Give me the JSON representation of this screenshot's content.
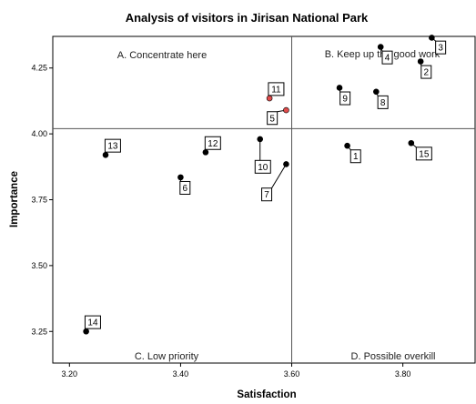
{
  "chart_data": {
    "type": "scatter",
    "title": "Analysis of visitors in Jirisan National Park",
    "xlabel": "Satisfaction",
    "ylabel": "Importance",
    "xlim": [
      3.17,
      3.93
    ],
    "ylim": [
      3.13,
      4.37
    ],
    "xticks": [
      "3.20",
      "3.40",
      "3.60",
      "3.80"
    ],
    "yticks": [
      "3.25",
      "3.50",
      "3.75",
      "4.00",
      "4.25"
    ],
    "reference_lines": {
      "x": 3.6,
      "y": 4.02
    },
    "quadrants": {
      "top_left": "A. Concentrate here",
      "top_right": "B. Keep up the good work",
      "bottom_left": "C. Low priority",
      "bottom_right": "D. Possible overkill"
    },
    "points": [
      {
        "label": "1",
        "x": 3.7,
        "y": 3.955,
        "color": "#000000",
        "lx": 3.715,
        "ly": 3.915
      },
      {
        "label": "2",
        "x": 3.832,
        "y": 4.275,
        "color": "#000000",
        "lx": 3.842,
        "ly": 4.235
      },
      {
        "label": "3",
        "x": 3.852,
        "y": 4.365,
        "color": "#000000",
        "lx": 3.868,
        "ly": 4.328
      },
      {
        "label": "4",
        "x": 3.76,
        "y": 4.33,
        "color": "#000000",
        "lx": 3.772,
        "ly": 4.29
      },
      {
        "label": "5",
        "x": 3.59,
        "y": 4.09,
        "color": "#e04c4c",
        "lx": 3.565,
        "ly": 4.06
      },
      {
        "label": "6",
        "x": 3.4,
        "y": 3.835,
        "color": "#000000",
        "lx": 3.408,
        "ly": 3.795
      },
      {
        "label": "7",
        "x": 3.59,
        "y": 3.885,
        "color": "#000000",
        "lx": 3.555,
        "ly": 3.77
      },
      {
        "label": "8",
        "x": 3.752,
        "y": 4.16,
        "color": "#000000",
        "lx": 3.764,
        "ly": 4.12
      },
      {
        "label": "9",
        "x": 3.686,
        "y": 4.175,
        "color": "#000000",
        "lx": 3.696,
        "ly": 4.135
      },
      {
        "label": "10",
        "x": 3.543,
        "y": 3.98,
        "color": "#000000",
        "lx": 3.548,
        "ly": 3.875
      },
      {
        "label": "11",
        "x": 3.56,
        "y": 4.135,
        "color": "#e04c4c",
        "lx": 3.572,
        "ly": 4.17
      },
      {
        "label": "12",
        "x": 3.445,
        "y": 3.93,
        "color": "#000000",
        "lx": 3.458,
        "ly": 3.965
      },
      {
        "label": "13",
        "x": 3.265,
        "y": 3.92,
        "color": "#000000",
        "lx": 3.278,
        "ly": 3.955
      },
      {
        "label": "14",
        "x": 3.23,
        "y": 3.25,
        "color": "#000000",
        "lx": 3.242,
        "ly": 3.285
      },
      {
        "label": "15",
        "x": 3.815,
        "y": 3.965,
        "color": "#000000",
        "lx": 3.838,
        "ly": 3.925
      }
    ]
  }
}
